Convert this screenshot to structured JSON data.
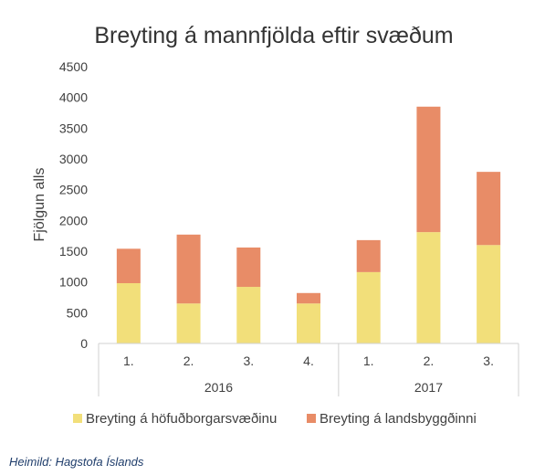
{
  "source_note": "Heimild: Hagstofa Íslands",
  "chart_data": {
    "type": "bar",
    "stacked": true,
    "title": "Breyting á mannfjölda eftir svæðum",
    "xlabel": "",
    "ylabel": "Fjölgun alls",
    "ylim": [
      0,
      4500
    ],
    "yticks": [
      0,
      500,
      1000,
      1500,
      2000,
      2500,
      3000,
      3500,
      4000,
      4500
    ],
    "grid": false,
    "legend_position": "bottom",
    "categories": [
      "1.",
      "2.",
      "3.",
      "4.",
      "1.",
      "2.",
      "3."
    ],
    "groups": [
      {
        "label": "2016",
        "count": 4
      },
      {
        "label": "2017",
        "count": 3
      }
    ],
    "series": [
      {
        "name": "Breyting á höfuðborgarsvæðinu",
        "color": "#f2df7a",
        "values": [
          980,
          650,
          920,
          650,
          1160,
          1810,
          1600
        ]
      },
      {
        "name": "Breyting á landsbyggðinni",
        "color": "#e88c67",
        "values": [
          560,
          1120,
          640,
          170,
          520,
          2040,
          1190
        ]
      }
    ]
  }
}
